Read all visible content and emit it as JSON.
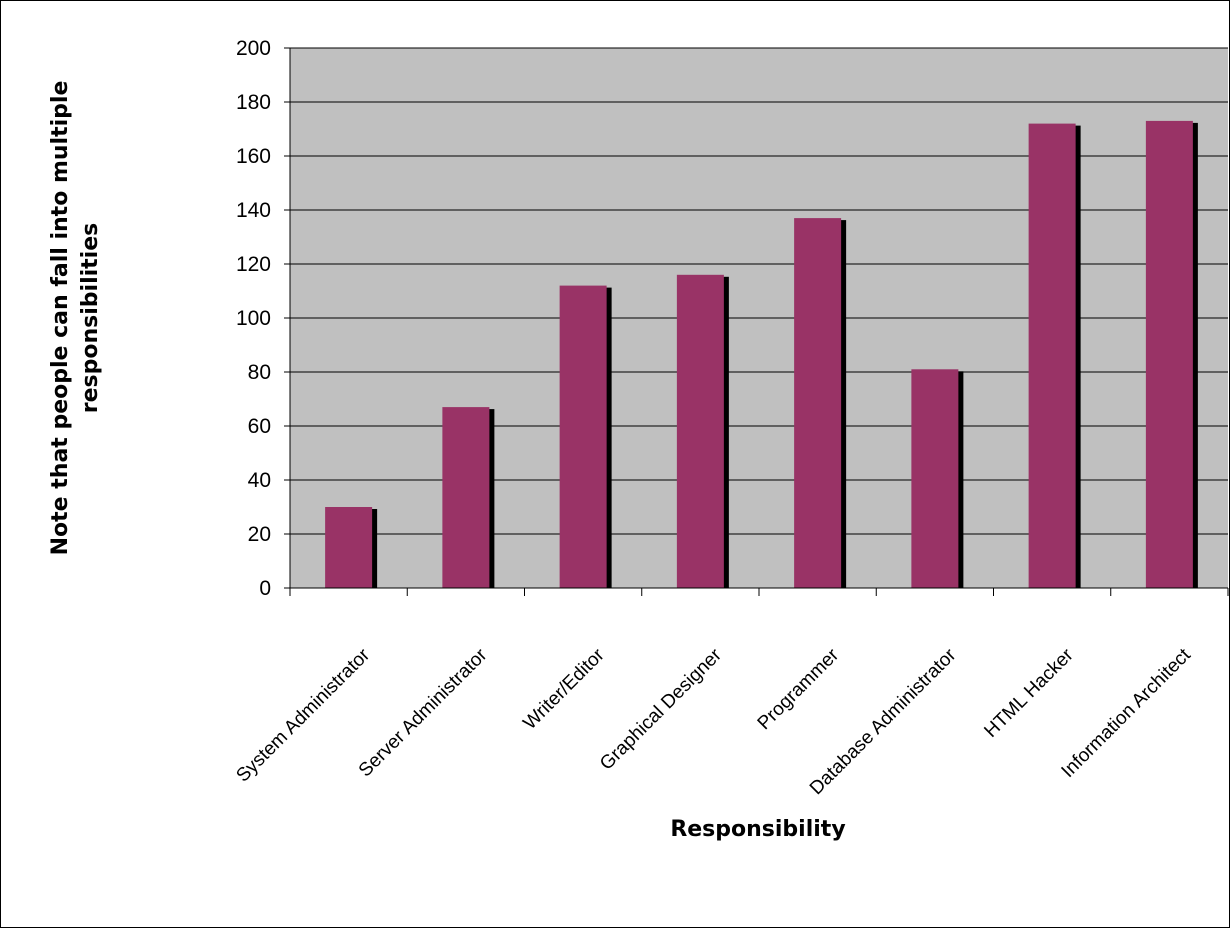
{
  "chart_data": {
    "type": "bar",
    "title": "",
    "xlabel": "Responsibility",
    "ylabel_lines": [
      "Note that people can fall into multiple",
      "responsibilities"
    ],
    "categories": [
      "System Administrator",
      "Server Administrator",
      "Writer/Editor",
      "Graphical Designer",
      "Programmer",
      "Database Administrator",
      "HTML Hacker",
      "Information Architect"
    ],
    "values": [
      30,
      67,
      112,
      116,
      137,
      81,
      172,
      173
    ],
    "ylim": [
      0,
      200
    ],
    "yticks": [
      0,
      20,
      40,
      60,
      80,
      100,
      120,
      140,
      160,
      180,
      200
    ],
    "grid": true,
    "legend": "none",
    "colors": {
      "bar": "#993366",
      "shadow": "#000000",
      "plot_background": "#c0c0c0",
      "gridline": "#000000"
    }
  }
}
